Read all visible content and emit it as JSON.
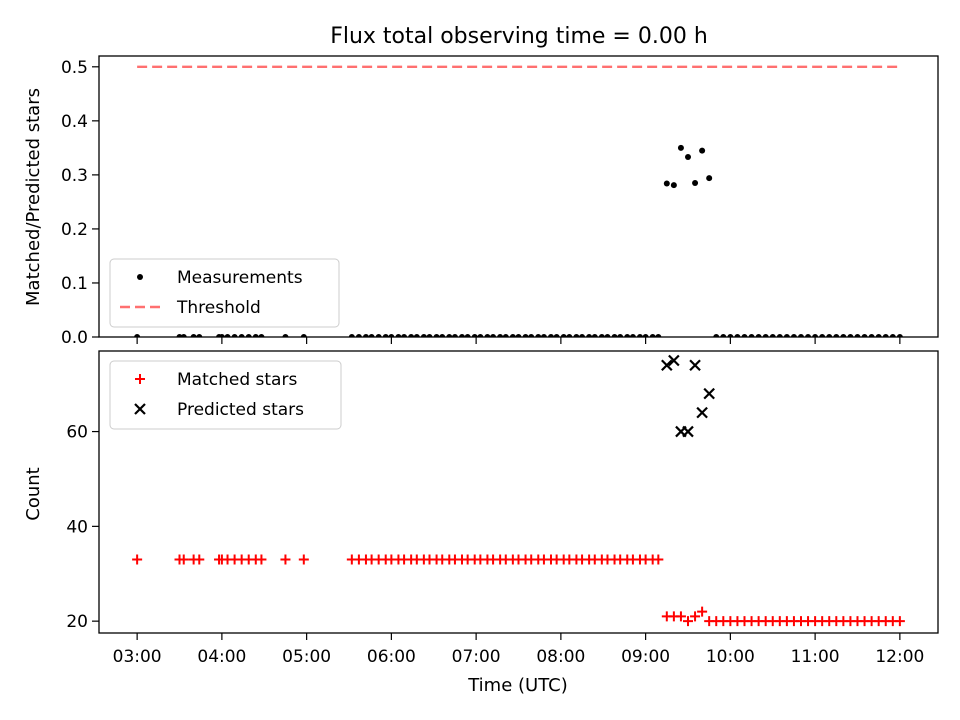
{
  "chart_data": [
    {
      "type": "scatter",
      "title": "Flux total observing time = 0.00 h",
      "ylabel": "Matched/Predicted stars",
      "xlabel": "",
      "ylim": [
        0,
        0.52
      ],
      "yticks": [
        "0.0",
        "0.1",
        "0.2",
        "0.3",
        "0.4",
        "0.5"
      ],
      "legend": {
        "placement": "bottom-left",
        "entries": [
          "Measurements",
          "Threshold"
        ]
      },
      "series": [
        {
          "name": "Measurements",
          "marker": "dot",
          "color": "#000000",
          "points": [
            [
              "03:00",
              0
            ],
            [
              "03:30",
              0
            ],
            [
              "03:33",
              0
            ],
            [
              "03:40",
              0
            ],
            [
              "03:44",
              0
            ],
            [
              "03:58",
              0
            ],
            [
              "04:00",
              0
            ],
            [
              "04:04",
              0
            ],
            [
              "04:09",
              0
            ],
            [
              "04:14",
              0
            ],
            [
              "04:19",
              0
            ],
            [
              "04:24",
              0
            ],
            [
              "04:28",
              0
            ],
            [
              "04:45",
              0
            ],
            [
              "04:58",
              0
            ],
            [
              "05:32",
              0
            ],
            [
              "05:37",
              0
            ],
            [
              "05:42",
              0
            ],
            [
              "05:46",
              0
            ],
            [
              "05:51",
              0
            ],
            [
              "05:56",
              0
            ],
            [
              "06:00",
              0
            ],
            [
              "06:05",
              0
            ],
            [
              "06:09",
              0
            ],
            [
              "06:14",
              0
            ],
            [
              "06:18",
              0
            ],
            [
              "06:23",
              0
            ],
            [
              "06:27",
              0
            ],
            [
              "06:32",
              0
            ],
            [
              "06:36",
              0
            ],
            [
              "06:41",
              0
            ],
            [
              "06:45",
              0
            ],
            [
              "06:50",
              0
            ],
            [
              "06:54",
              0
            ],
            [
              "06:59",
              0
            ],
            [
              "07:03",
              0
            ],
            [
              "07:08",
              0
            ],
            [
              "07:12",
              0
            ],
            [
              "07:17",
              0
            ],
            [
              "07:21",
              0
            ],
            [
              "07:26",
              0
            ],
            [
              "07:30",
              0
            ],
            [
              "07:35",
              0
            ],
            [
              "07:39",
              0
            ],
            [
              "07:44",
              0
            ],
            [
              "07:48",
              0
            ],
            [
              "07:53",
              0
            ],
            [
              "07:57",
              0
            ],
            [
              "08:02",
              0
            ],
            [
              "08:06",
              0
            ],
            [
              "08:11",
              0
            ],
            [
              "08:15",
              0
            ],
            [
              "08:20",
              0
            ],
            [
              "08:24",
              0
            ],
            [
              "08:29",
              0
            ],
            [
              "08:33",
              0
            ],
            [
              "08:38",
              0
            ],
            [
              "08:42",
              0
            ],
            [
              "08:47",
              0
            ],
            [
              "08:51",
              0
            ],
            [
              "08:56",
              0
            ],
            [
              "09:00",
              0
            ],
            [
              "09:05",
              0
            ],
            [
              "09:09",
              0
            ],
            [
              "09:15",
              0.284
            ],
            [
              "09:20",
              0.281
            ],
            [
              "09:25",
              0.35
            ],
            [
              "09:30",
              0.333
            ],
            [
              "09:35",
              0.285
            ],
            [
              "09:40",
              0.345
            ],
            [
              "09:45",
              0.294
            ],
            [
              "09:50",
              0
            ],
            [
              "09:55",
              0
            ],
            [
              "10:00",
              0
            ],
            [
              "10:05",
              0
            ],
            [
              "10:10",
              0
            ],
            [
              "10:15",
              0
            ],
            [
              "10:20",
              0
            ],
            [
              "10:25",
              0
            ],
            [
              "10:30",
              0
            ],
            [
              "10:35",
              0
            ],
            [
              "10:40",
              0
            ],
            [
              "10:45",
              0
            ],
            [
              "10:50",
              0
            ],
            [
              "10:55",
              0
            ],
            [
              "11:00",
              0
            ],
            [
              "11:05",
              0
            ],
            [
              "11:10",
              0
            ],
            [
              "11:15",
              0
            ],
            [
              "11:20",
              0
            ],
            [
              "11:25",
              0
            ],
            [
              "11:30",
              0
            ],
            [
              "11:35",
              0
            ],
            [
              "11:40",
              0
            ],
            [
              "11:45",
              0
            ],
            [
              "11:50",
              0
            ],
            [
              "11:55",
              0
            ],
            [
              "12:00",
              0
            ]
          ]
        },
        {
          "name": "Threshold",
          "marker": "dashed-line",
          "color": "#ff7070",
          "points": [
            [
              "03:00",
              0.5
            ],
            [
              "12:00",
              0.5
            ]
          ]
        }
      ]
    },
    {
      "type": "scatter",
      "title": "",
      "ylabel": "Count",
      "xlabel": "Time (UTC)",
      "ylim": [
        17.5,
        77
      ],
      "yticks": [
        "20",
        "40",
        "60"
      ],
      "xticks": [
        "03:00",
        "04:00",
        "05:00",
        "06:00",
        "07:00",
        "08:00",
        "09:00",
        "10:00",
        "11:00",
        "12:00"
      ],
      "legend": {
        "placement": "top-left",
        "entries": [
          "Matched stars",
          "Predicted stars"
        ]
      },
      "series": [
        {
          "name": "Matched stars",
          "marker": "plus",
          "color": "#ff0000",
          "points": [
            [
              "03:00",
              33
            ],
            [
              "03:30",
              33
            ],
            [
              "03:33",
              33
            ],
            [
              "03:40",
              33
            ],
            [
              "03:44",
              33
            ],
            [
              "03:58",
              33
            ],
            [
              "04:00",
              33
            ],
            [
              "04:04",
              33
            ],
            [
              "04:09",
              33
            ],
            [
              "04:14",
              33
            ],
            [
              "04:19",
              33
            ],
            [
              "04:24",
              33
            ],
            [
              "04:28",
              33
            ],
            [
              "04:45",
              33
            ],
            [
              "04:58",
              33
            ],
            [
              "05:32",
              33
            ],
            [
              "05:37",
              33
            ],
            [
              "05:42",
              33
            ],
            [
              "05:46",
              33
            ],
            [
              "05:51",
              33
            ],
            [
              "05:56",
              33
            ],
            [
              "06:00",
              33
            ],
            [
              "06:05",
              33
            ],
            [
              "06:09",
              33
            ],
            [
              "06:14",
              33
            ],
            [
              "06:18",
              33
            ],
            [
              "06:23",
              33
            ],
            [
              "06:27",
              33
            ],
            [
              "06:32",
              33
            ],
            [
              "06:36",
              33
            ],
            [
              "06:41",
              33
            ],
            [
              "06:45",
              33
            ],
            [
              "06:50",
              33
            ],
            [
              "06:54",
              33
            ],
            [
              "06:59",
              33
            ],
            [
              "07:03",
              33
            ],
            [
              "07:08",
              33
            ],
            [
              "07:12",
              33
            ],
            [
              "07:17",
              33
            ],
            [
              "07:21",
              33
            ],
            [
              "07:26",
              33
            ],
            [
              "07:30",
              33
            ],
            [
              "07:35",
              33
            ],
            [
              "07:39",
              33
            ],
            [
              "07:44",
              33
            ],
            [
              "07:48",
              33
            ],
            [
              "07:53",
              33
            ],
            [
              "07:57",
              33
            ],
            [
              "08:02",
              33
            ],
            [
              "08:06",
              33
            ],
            [
              "08:11",
              33
            ],
            [
              "08:15",
              33
            ],
            [
              "08:20",
              33
            ],
            [
              "08:24",
              33
            ],
            [
              "08:29",
              33
            ],
            [
              "08:33",
              33
            ],
            [
              "08:38",
              33
            ],
            [
              "08:42",
              33
            ],
            [
              "08:47",
              33
            ],
            [
              "08:51",
              33
            ],
            [
              "08:56",
              33
            ],
            [
              "09:00",
              33
            ],
            [
              "09:05",
              33
            ],
            [
              "09:09",
              33
            ],
            [
              "09:15",
              21
            ],
            [
              "09:20",
              21
            ],
            [
              "09:25",
              21
            ],
            [
              "09:30",
              20
            ],
            [
              "09:35",
              21
            ],
            [
              "09:40",
              22
            ],
            [
              "09:45",
              20
            ],
            [
              "09:50",
              20
            ],
            [
              "09:55",
              20
            ],
            [
              "10:00",
              20
            ],
            [
              "10:05",
              20
            ],
            [
              "10:10",
              20
            ],
            [
              "10:15",
              20
            ],
            [
              "10:20",
              20
            ],
            [
              "10:25",
              20
            ],
            [
              "10:30",
              20
            ],
            [
              "10:35",
              20
            ],
            [
              "10:40",
              20
            ],
            [
              "10:45",
              20
            ],
            [
              "10:50",
              20
            ],
            [
              "10:55",
              20
            ],
            [
              "11:00",
              20
            ],
            [
              "11:05",
              20
            ],
            [
              "11:10",
              20
            ],
            [
              "11:15",
              20
            ],
            [
              "11:20",
              20
            ],
            [
              "11:25",
              20
            ],
            [
              "11:30",
              20
            ],
            [
              "11:35",
              20
            ],
            [
              "11:40",
              20
            ],
            [
              "11:45",
              20
            ],
            [
              "11:50",
              20
            ],
            [
              "11:55",
              20
            ],
            [
              "12:00",
              20
            ]
          ]
        },
        {
          "name": "Predicted stars",
          "marker": "x",
          "color": "#000000",
          "points": [
            [
              "09:15",
              74
            ],
            [
              "09:20",
              75
            ],
            [
              "09:25",
              60
            ],
            [
              "09:30",
              60
            ],
            [
              "09:35",
              74
            ],
            [
              "09:40",
              64
            ],
            [
              "09:45",
              68
            ]
          ]
        }
      ]
    }
  ]
}
